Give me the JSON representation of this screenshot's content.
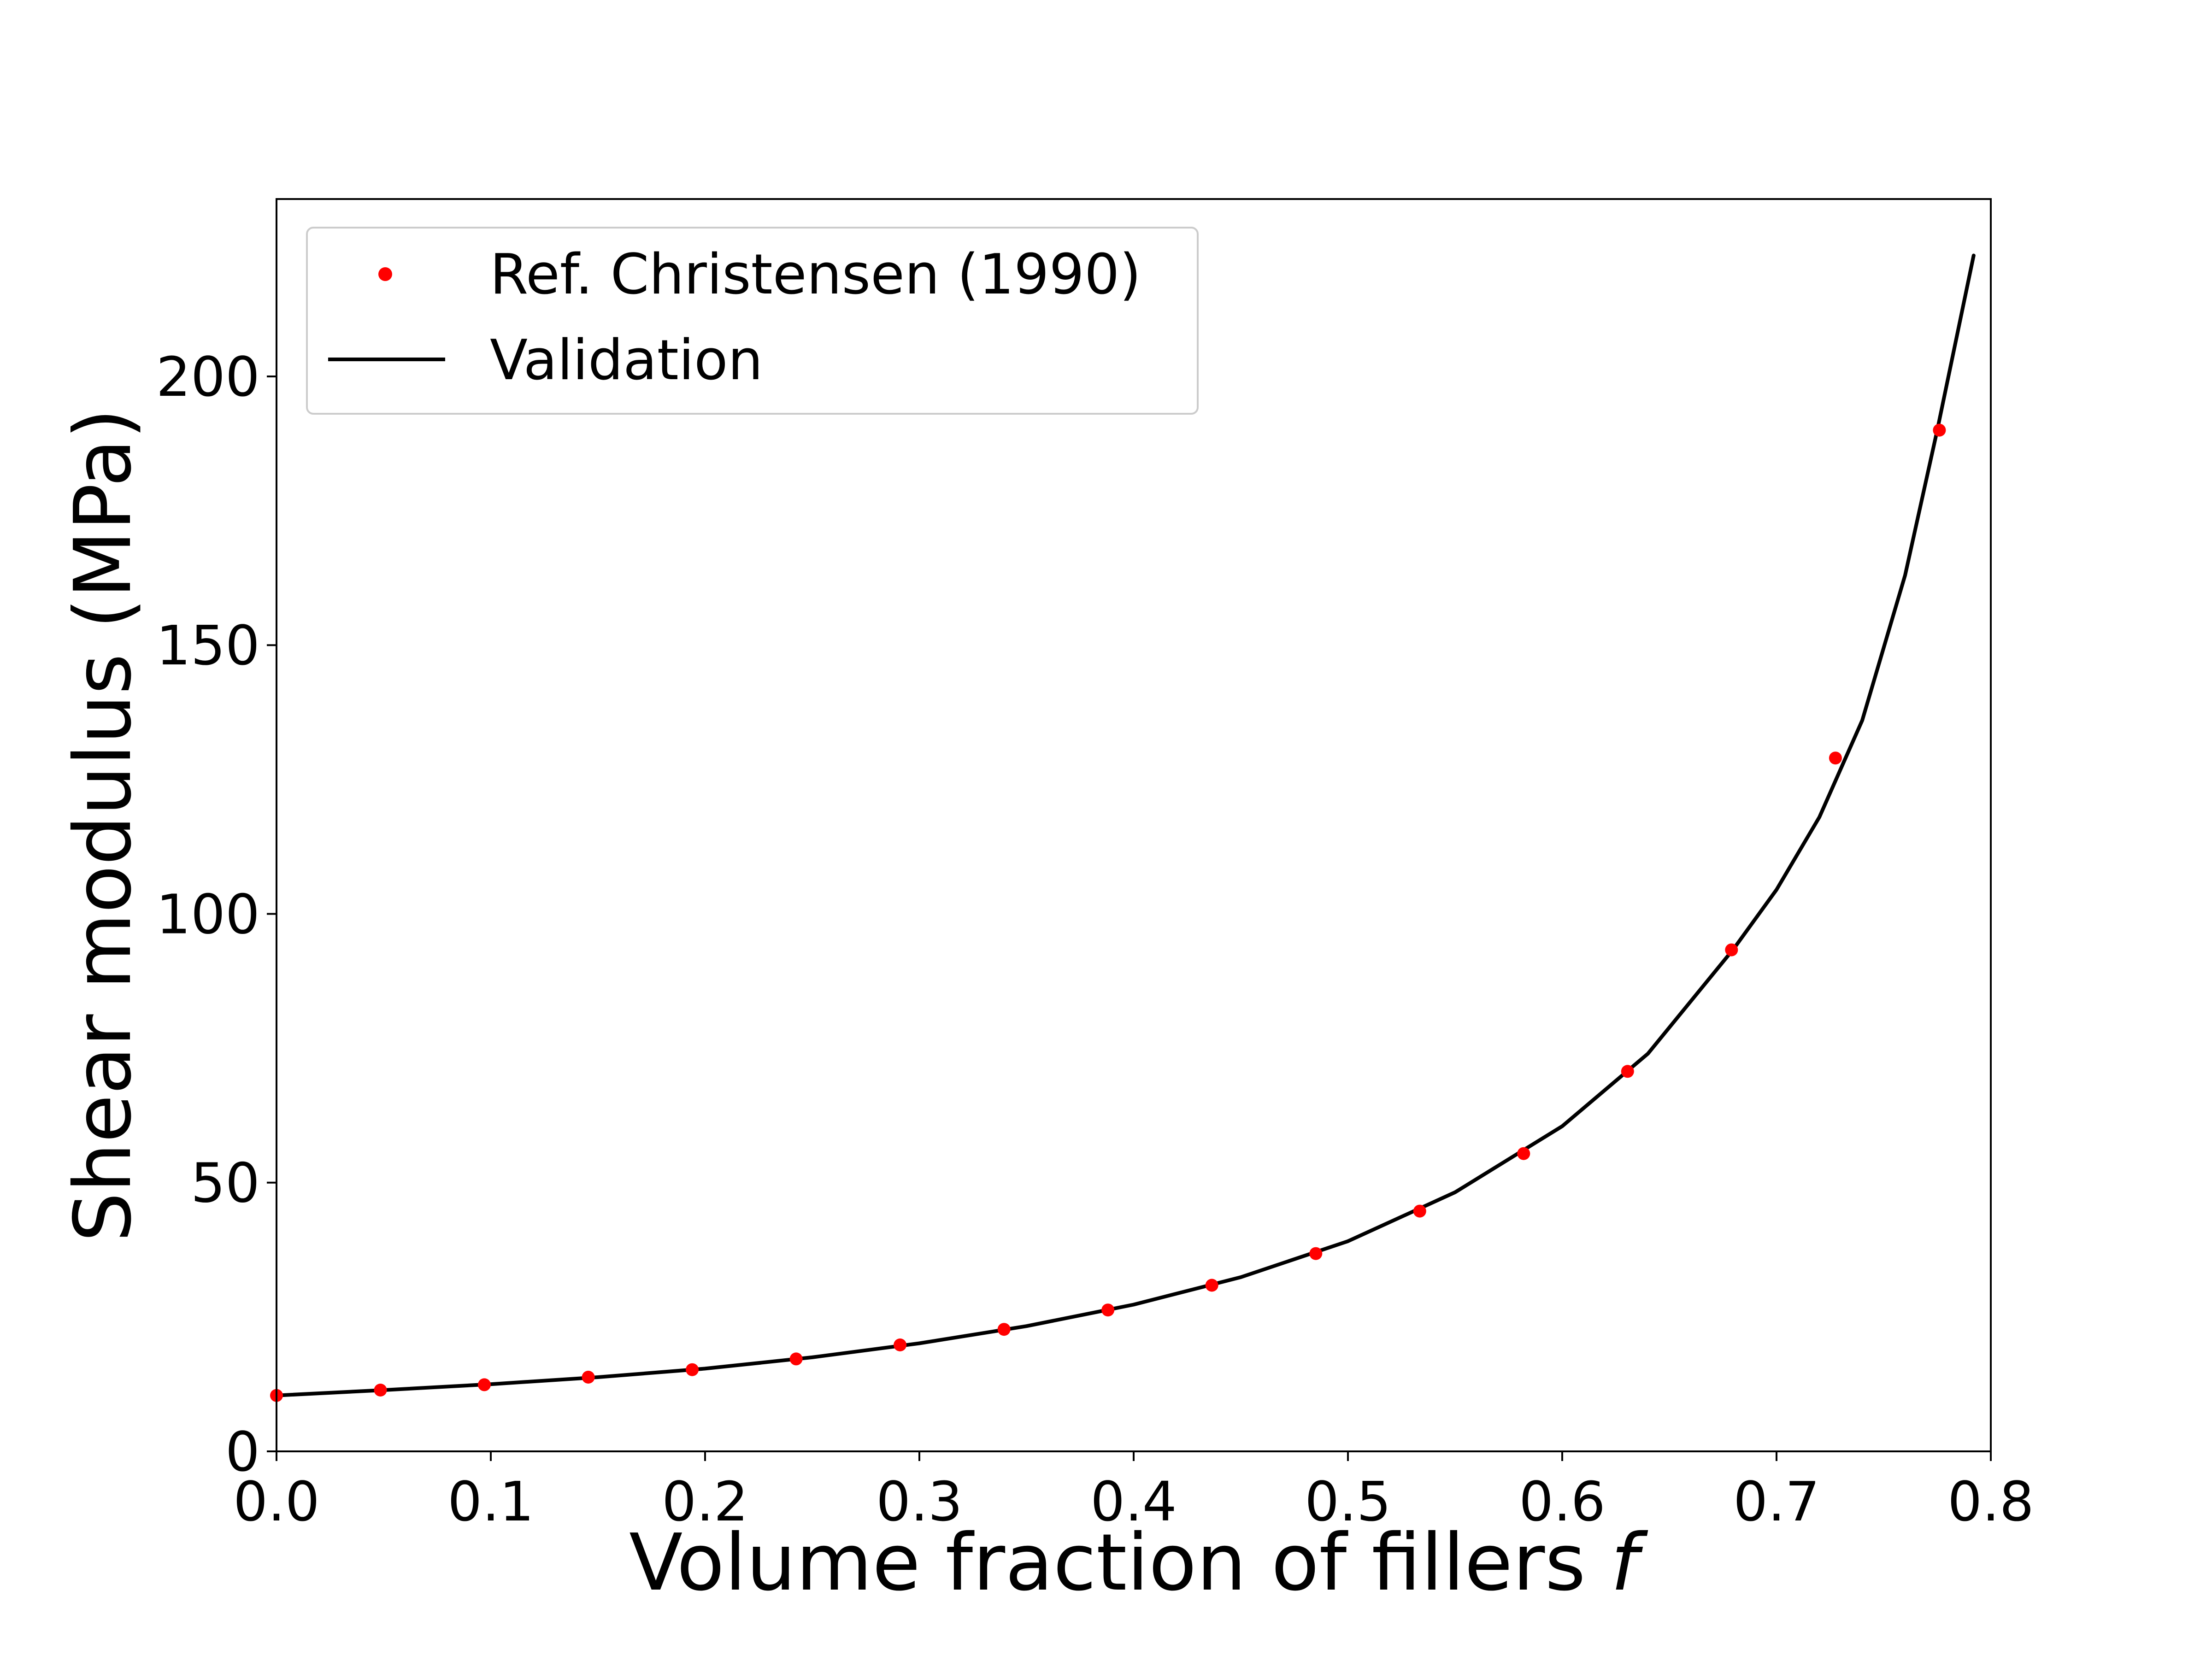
{
  "chart_data": {
    "type": "line",
    "title": "",
    "xlabel": "Volume fraction of fillers",
    "xlabel_symbol": "f",
    "ylabel": "Shear modulus (MPa)",
    "xlim": [
      0.0,
      0.8
    ],
    "ylim": [
      0,
      233
    ],
    "xticks": [
      "0.0",
      "0.1",
      "0.2",
      "0.3",
      "0.4",
      "0.5",
      "0.6",
      "0.7",
      "0.8"
    ],
    "yticks": [
      "0",
      "50",
      "100",
      "150",
      "200"
    ],
    "grid": false,
    "legend_position": "top-left",
    "series": [
      {
        "name": "Ref. Christensen (1990)",
        "kind": "scatter",
        "color": "#ff0000",
        "x": [
          0.0,
          0.0485,
          0.097,
          0.1455,
          0.194,
          0.2425,
          0.291,
          0.3395,
          0.388,
          0.4365,
          0.485,
          0.5335,
          0.582,
          0.6305,
          0.679,
          0.7275,
          0.776
        ],
        "y": [
          10.4,
          11.4,
          12.4,
          13.8,
          15.2,
          17.2,
          19.8,
          22.7,
          26.3,
          30.9,
          36.8,
          44.7,
          55.4,
          70.7,
          93.3,
          129.0,
          190.0
        ]
      },
      {
        "name": "Validation",
        "kind": "line",
        "color": "#000000",
        "x": [
          0.0,
          0.05,
          0.1,
          0.15,
          0.2,
          0.25,
          0.3,
          0.35,
          0.4,
          0.45,
          0.5,
          0.55,
          0.6,
          0.64,
          0.68,
          0.7,
          0.72,
          0.74,
          0.76,
          0.775,
          0.792
        ],
        "y": [
          10.4,
          11.4,
          12.5,
          13.8,
          15.4,
          17.5,
          20.1,
          23.3,
          27.3,
          32.4,
          39.1,
          48.2,
          60.5,
          74.0,
          93.5,
          104.5,
          118.0,
          136.0,
          163.0,
          190.0,
          222.5
        ]
      }
    ]
  }
}
